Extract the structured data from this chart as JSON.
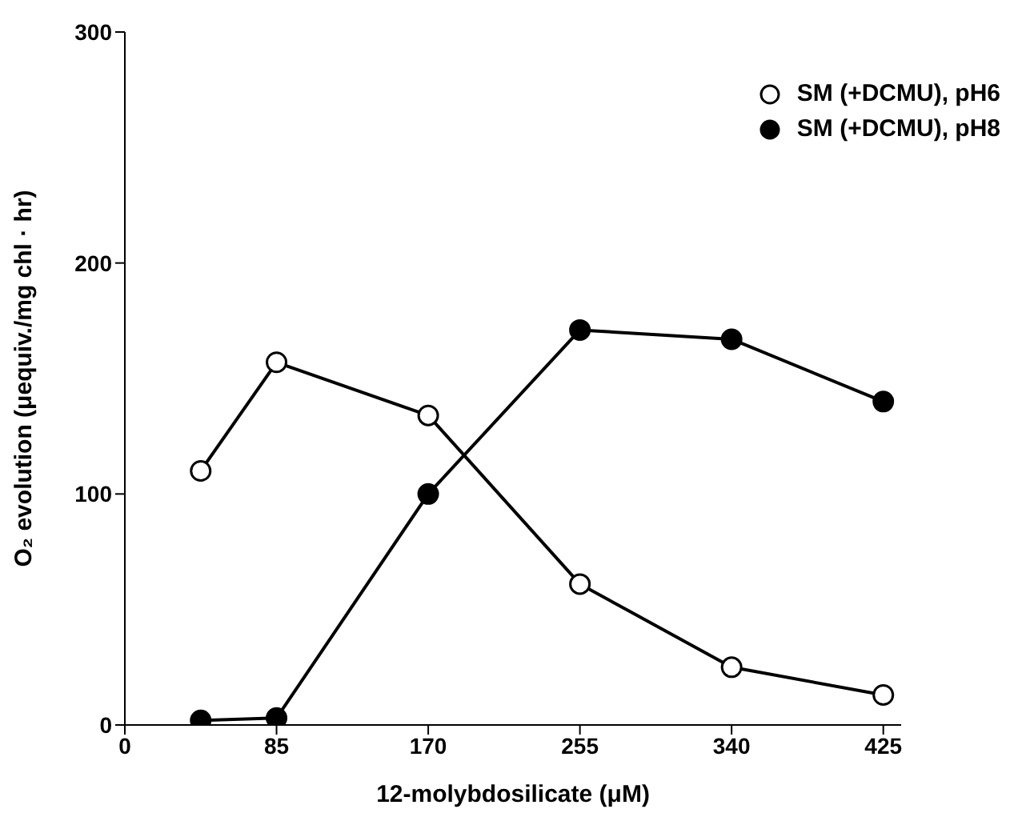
{
  "chart_data": {
    "type": "line",
    "xlabel": "12-molybdosilicate (μM)",
    "ylabel": "O₂ evolution (μequiv./mg chl · hr)",
    "x": [
      42.5,
      85,
      170,
      255,
      340,
      425
    ],
    "xlim": [
      0,
      435
    ],
    "xticks": [
      0,
      85,
      170,
      255,
      340,
      425
    ],
    "ylim": [
      0,
      300
    ],
    "yticks": [
      0,
      100,
      200,
      300
    ],
    "series": [
      {
        "name": "SM (+DCMU), pH6",
        "color": "#000000",
        "values": [
          110,
          157,
          134,
          61,
          25,
          13
        ]
      },
      {
        "name": "SM (+DCMU), pH8",
        "color": "#000000",
        "values": [
          2,
          3,
          100,
          171,
          167,
          140
        ]
      }
    ],
    "marker": "circle",
    "line_style": "solid",
    "legend": "top right",
    "grid": false
  }
}
